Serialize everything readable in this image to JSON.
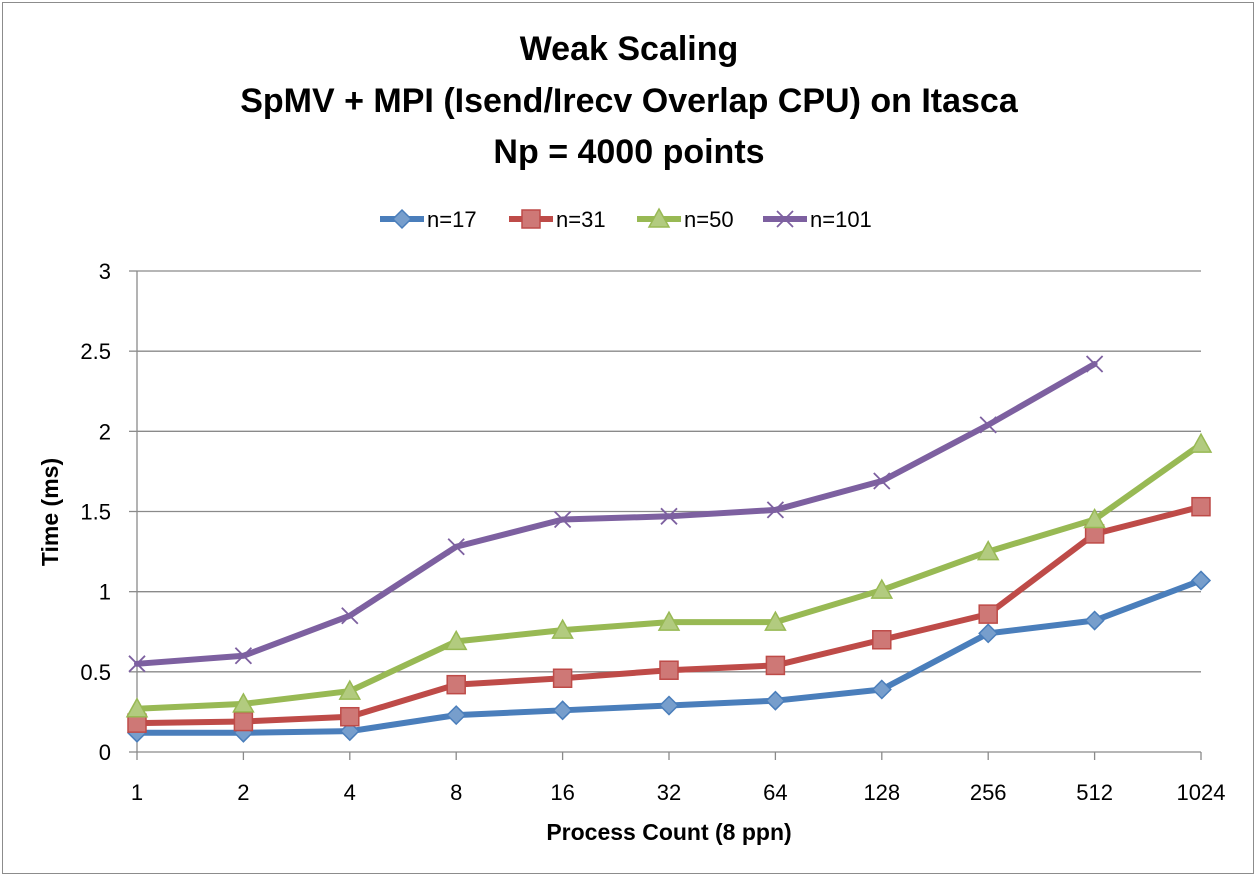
{
  "chart_data": {
    "type": "line",
    "title": [
      "Weak Scaling",
      "SpMV + MPI (Isend/Irecv Overlap CPU) on Itasca",
      "Np = 4000 points"
    ],
    "xlabel": "Process Count (8 ppn)",
    "ylabel": "Time (ms)",
    "categories": [
      "1",
      "2",
      "4",
      "8",
      "16",
      "32",
      "64",
      "128",
      "256",
      "512",
      "1024"
    ],
    "ylim": [
      0,
      3
    ],
    "yticks": [
      "0",
      "0.5",
      "1",
      "1.5",
      "2",
      "2.5",
      "3"
    ],
    "grid": true,
    "legend_position": "top",
    "series": [
      {
        "name": "n=17",
        "color": "#4a7ebb",
        "marker": "diamond",
        "values": [
          0.12,
          0.12,
          0.13,
          0.23,
          0.26,
          0.29,
          0.32,
          0.39,
          0.74,
          0.82,
          1.07
        ]
      },
      {
        "name": "n=31",
        "color": "#be4b48",
        "marker": "square",
        "values": [
          0.18,
          0.19,
          0.22,
          0.42,
          0.46,
          0.51,
          0.54,
          0.7,
          0.86,
          1.36,
          1.53
        ]
      },
      {
        "name": "n=50",
        "color": "#98b954",
        "marker": "triangle",
        "values": [
          0.27,
          0.3,
          0.38,
          0.69,
          0.76,
          0.81,
          0.81,
          1.01,
          1.25,
          1.45,
          1.92
        ]
      },
      {
        "name": "n=101",
        "color": "#7d60a0",
        "marker": "x",
        "values": [
          0.55,
          0.6,
          0.85,
          1.28,
          1.45,
          1.47,
          1.51,
          1.69,
          2.04,
          2.42,
          null
        ]
      }
    ]
  }
}
